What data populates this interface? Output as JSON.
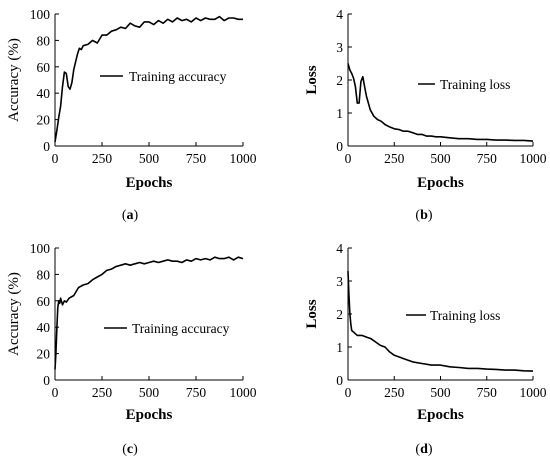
{
  "chart_data": [
    {
      "type": "line",
      "panel": "a",
      "caption": "a",
      "xlabel": "Epochs",
      "ylabel": "Accuracy (%)",
      "xlim": [
        0,
        1000
      ],
      "ylim": [
        0,
        100
      ],
      "xticks": [
        "0",
        "250",
        "500",
        "750",
        "1000"
      ],
      "yticks": [
        "0",
        "20",
        "40",
        "60",
        "80",
        "100"
      ],
      "grid": false,
      "legend_position": "center-right",
      "series": [
        {
          "name": "Training accuracy",
          "x": [
            0,
            10,
            20,
            30,
            40,
            50,
            60,
            70,
            80,
            90,
            100,
            110,
            120,
            130,
            140,
            150,
            175,
            200,
            225,
            250,
            275,
            300,
            325,
            350,
            375,
            400,
            425,
            450,
            475,
            500,
            525,
            550,
            575,
            600,
            625,
            650,
            675,
            700,
            725,
            750,
            775,
            800,
            825,
            850,
            875,
            900,
            925,
            950,
            975,
            1000
          ],
          "y": [
            3,
            12,
            22,
            30,
            45,
            56,
            55,
            45,
            43,
            48,
            58,
            64,
            70,
            74,
            73,
            76,
            77,
            80,
            78,
            84,
            84,
            87,
            88,
            90,
            89,
            93,
            91,
            90,
            94,
            94,
            92,
            95,
            93,
            96,
            94,
            97,
            95,
            96,
            94,
            97,
            95,
            97,
            96,
            96,
            98,
            95,
            97,
            97,
            96,
            96
          ]
        }
      ]
    },
    {
      "type": "line",
      "panel": "b",
      "caption": "b",
      "xlabel": "Epochs",
      "ylabel": "Loss",
      "xlim": [
        0,
        1000
      ],
      "ylim": [
        0,
        4
      ],
      "xticks": [
        "0",
        "250",
        "500",
        "750",
        "1000"
      ],
      "yticks": [
        "0",
        "1",
        "2",
        "3",
        "4"
      ],
      "grid": false,
      "legend_position": "upper-right",
      "series": [
        {
          "name": "Training loss",
          "x": [
            0,
            10,
            20,
            30,
            40,
            50,
            60,
            70,
            80,
            90,
            100,
            110,
            120,
            140,
            160,
            180,
            200,
            225,
            250,
            275,
            300,
            325,
            350,
            375,
            400,
            425,
            450,
            475,
            500,
            550,
            600,
            650,
            700,
            750,
            800,
            850,
            900,
            950,
            1000
          ],
          "y": [
            2.5,
            2.3,
            2.2,
            2.05,
            1.8,
            1.3,
            1.3,
            1.95,
            2.1,
            1.8,
            1.5,
            1.3,
            1.1,
            0.9,
            0.8,
            0.75,
            0.65,
            0.58,
            0.52,
            0.5,
            0.45,
            0.45,
            0.4,
            0.35,
            0.35,
            0.3,
            0.3,
            0.28,
            0.28,
            0.25,
            0.22,
            0.22,
            0.2,
            0.2,
            0.18,
            0.18,
            0.17,
            0.17,
            0.15
          ]
        }
      ]
    },
    {
      "type": "line",
      "panel": "c",
      "caption": "c",
      "xlabel": "Epochs",
      "ylabel": "Accuracy (%)",
      "xlim": [
        0,
        1000
      ],
      "ylim": [
        0,
        100
      ],
      "xticks": [
        "0",
        "250",
        "500",
        "750",
        "1000"
      ],
      "yticks": [
        "0",
        "20",
        "40",
        "60",
        "80",
        "100"
      ],
      "grid": false,
      "legend_position": "center-right",
      "series": [
        {
          "name": "Training accuracy",
          "x": [
            0,
            5,
            10,
            15,
            20,
            25,
            30,
            40,
            50,
            60,
            75,
            100,
            125,
            150,
            175,
            200,
            225,
            250,
            275,
            300,
            325,
            350,
            375,
            400,
            425,
            450,
            475,
            500,
            525,
            550,
            575,
            600,
            625,
            650,
            675,
            700,
            725,
            750,
            775,
            800,
            825,
            850,
            875,
            900,
            925,
            950,
            975,
            1000
          ],
          "y": [
            8,
            20,
            40,
            55,
            60,
            58,
            62,
            57,
            60,
            59,
            62,
            64,
            70,
            72,
            73,
            76,
            78,
            80,
            83,
            84,
            86,
            87,
            88,
            87,
            88,
            89,
            88,
            89,
            90,
            89,
            90,
            91,
            90,
            90,
            89,
            91,
            90,
            92,
            91,
            92,
            91,
            93,
            92,
            92,
            93,
            91,
            93,
            92
          ]
        }
      ]
    },
    {
      "type": "line",
      "panel": "d",
      "caption": "d",
      "xlabel": "Epochs",
      "ylabel": "Loss",
      "xlim": [
        0,
        1000
      ],
      "ylim": [
        0,
        4
      ],
      "xticks": [
        "0",
        "250",
        "500",
        "750",
        "1000"
      ],
      "yticks": [
        "0",
        "1",
        "2",
        "3",
        "4"
      ],
      "grid": false,
      "legend_position": "upper-right",
      "series": [
        {
          "name": "Training loss",
          "x": [
            0,
            5,
            10,
            15,
            20,
            30,
            40,
            50,
            75,
            100,
            125,
            150,
            175,
            200,
            225,
            250,
            275,
            300,
            350,
            400,
            450,
            500,
            550,
            600,
            650,
            700,
            750,
            800,
            850,
            900,
            950,
            1000
          ],
          "y": [
            3.3,
            2.6,
            2.0,
            1.7,
            1.5,
            1.45,
            1.4,
            1.35,
            1.35,
            1.3,
            1.25,
            1.15,
            1.05,
            1.0,
            0.85,
            0.75,
            0.7,
            0.65,
            0.55,
            0.5,
            0.45,
            0.45,
            0.4,
            0.38,
            0.35,
            0.35,
            0.33,
            0.32,
            0.3,
            0.3,
            0.28,
            0.27
          ]
        }
      ]
    }
  ]
}
